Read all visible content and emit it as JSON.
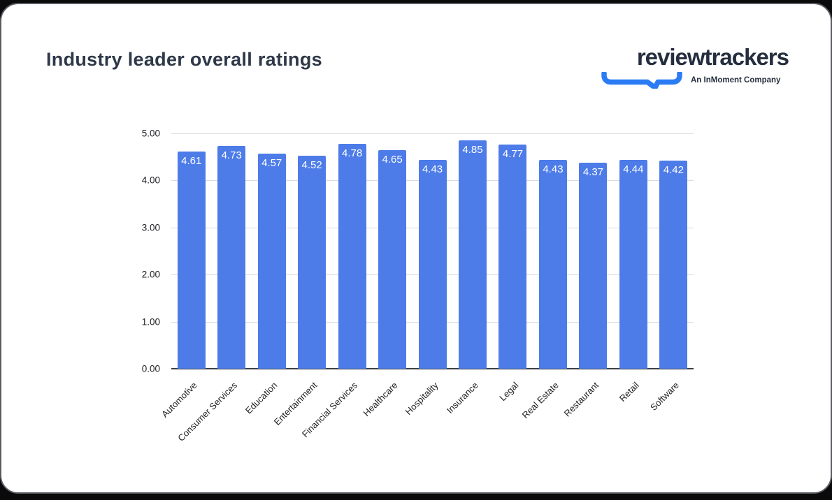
{
  "page": {
    "title": "Industry leader overall ratings"
  },
  "logo": {
    "wordmark": "reviewtrackers",
    "tagline": "An InMoment Company",
    "swoosh_color": "#2b7cf4",
    "text_color": "#252e3e"
  },
  "chart_data": {
    "type": "bar",
    "title": "Industry leader overall ratings",
    "categories": [
      "Automotive",
      "Consumer Services",
      "Education",
      "Entertainment",
      "Financial Services",
      "Healthcare",
      "Hospitality",
      "Insurance",
      "Legal",
      "Real Estate",
      "Restaurant",
      "Retail",
      "Software"
    ],
    "values": [
      4.61,
      4.73,
      4.57,
      4.52,
      4.78,
      4.65,
      4.43,
      4.85,
      4.77,
      4.43,
      4.37,
      4.44,
      4.42
    ],
    "value_labels": [
      "4.61",
      "4.73",
      "4.57",
      "4.52",
      "4.78",
      "4.65",
      "4.43",
      "4.85",
      "4.77",
      "4.43",
      "4.37",
      "4.44",
      "4.42"
    ],
    "xlabel": "",
    "ylabel": "",
    "ylim": [
      0,
      5
    ],
    "yticks": [
      "0.00",
      "1.00",
      "2.00",
      "3.00",
      "4.00",
      "5.00"
    ],
    "grid": true,
    "legend_position": "none",
    "bar_color": "#4d7ce9",
    "value_label_color": "#ffffff"
  }
}
